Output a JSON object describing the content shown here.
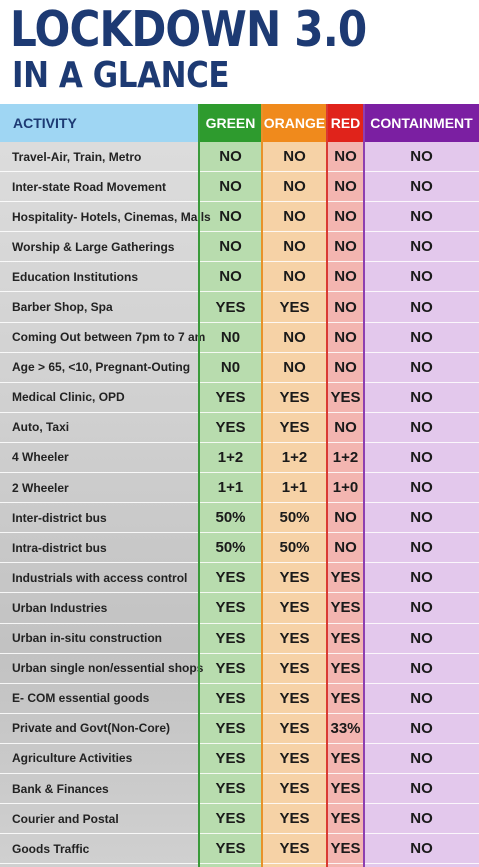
{
  "title": {
    "line1": "LOCKDOWN 3.0",
    "line2": "IN A GLANCE"
  },
  "headers": {
    "activity": "ACTIVITY",
    "green": "GREEN",
    "orange": "ORANGE",
    "red": "RED",
    "containment": "CONTAINMENT"
  },
  "colors": {
    "title": "#1d3a73",
    "green": "#2e9b2e",
    "orange": "#f08a1c",
    "red": "#e0231b",
    "containment": "#7b1fa2",
    "activity_header": "#9fd6f3"
  },
  "rows": [
    {
      "activity": "Travel-Air, Train, Metro",
      "green": "NO",
      "orange": "NO",
      "red": "NO",
      "containment": "NO"
    },
    {
      "activity": "Inter-state Road Movement",
      "green": "NO",
      "orange": "NO",
      "red": "NO",
      "containment": "NO"
    },
    {
      "activity": "Hospitality- Hotels, Cinemas, Malls",
      "green": "NO",
      "orange": "NO",
      "red": "NO",
      "containment": "NO"
    },
    {
      "activity": "Worship & Large Gatherings",
      "green": "NO",
      "orange": "NO",
      "red": "NO",
      "containment": "NO"
    },
    {
      "activity": "Education Institutions",
      "green": "NO",
      "orange": "NO",
      "red": "NO",
      "containment": "NO"
    },
    {
      "activity": "Barber Shop, Spa",
      "green": "YES",
      "orange": "YES",
      "red": "NO",
      "containment": "NO"
    },
    {
      "activity": "Coming Out between 7pm to 7 am",
      "green": "N0",
      "orange": "NO",
      "red": "NO",
      "containment": "NO"
    },
    {
      "activity": "Age > 65, <10, Pregnant-Outing",
      "green": "N0",
      "orange": "NO",
      "red": "NO",
      "containment": "NO"
    },
    {
      "activity": "Medical Clinic, OPD",
      "green": "YES",
      "orange": "YES",
      "red": "YES",
      "containment": "NO"
    },
    {
      "activity": "Auto, Taxi",
      "green": "YES",
      "orange": "YES",
      "red": "NO",
      "containment": "NO"
    },
    {
      "activity": "4 Wheeler",
      "green": "1+2",
      "orange": "1+2",
      "red": "1+2",
      "containment": "NO"
    },
    {
      "activity": "2 Wheeler",
      "green": "1+1",
      "orange": "1+1",
      "red": "1+0",
      "containment": "NO"
    },
    {
      "activity": "Inter-district bus",
      "green": "50%",
      "orange": "50%",
      "red": "NO",
      "containment": "NO"
    },
    {
      "activity": "Intra-district bus",
      "green": "50%",
      "orange": "50%",
      "red": "NO",
      "containment": "NO"
    },
    {
      "activity": "Industrials with access control",
      "green": "YES",
      "orange": "YES",
      "red": "YES",
      "containment": "NO"
    },
    {
      "activity": "Urban Industries",
      "green": "YES",
      "orange": "YES",
      "red": "YES",
      "containment": "NO"
    },
    {
      "activity": "Urban in-situ construction",
      "green": "YES",
      "orange": "YES",
      "red": "YES",
      "containment": "NO"
    },
    {
      "activity": "Urban single non/essential shops",
      "green": "YES",
      "orange": "YES",
      "red": "YES",
      "containment": "NO"
    },
    {
      "activity": "E- COM essential goods",
      "green": "YES",
      "orange": "YES",
      "red": "YES",
      "containment": "NO"
    },
    {
      "activity": "Private and Govt(Non-Core)",
      "green": "YES",
      "orange": "YES",
      "red": "33%",
      "containment": "NO"
    },
    {
      "activity": "Agriculture Activities",
      "green": "YES",
      "orange": "YES",
      "red": "YES",
      "containment": "NO"
    },
    {
      "activity": "Bank & Finances",
      "green": "YES",
      "orange": "YES",
      "red": "YES",
      "containment": "NO"
    },
    {
      "activity": "Courier and Postal",
      "green": "YES",
      "orange": "YES",
      "red": "YES",
      "containment": "NO"
    },
    {
      "activity": "Goods Traffic",
      "green": "YES",
      "orange": "YES",
      "red": "YES",
      "containment": "NO"
    }
  ]
}
